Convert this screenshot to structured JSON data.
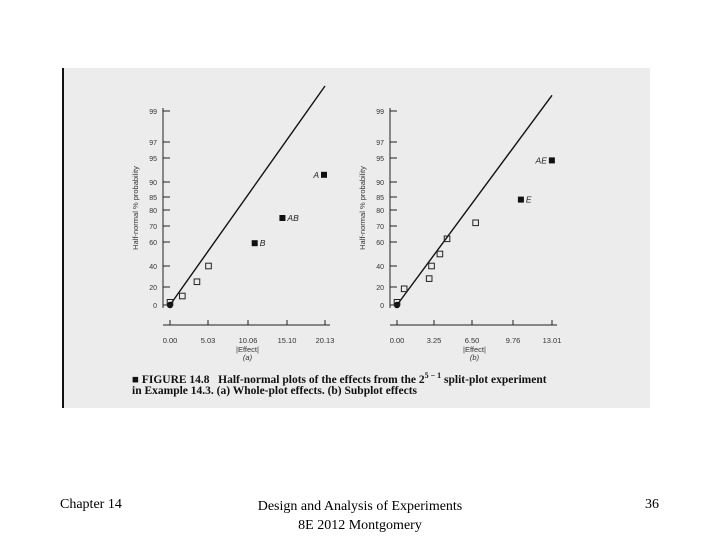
{
  "caption": {
    "label": "■ FIGURE 14.8",
    "line1_rest": "Half-normal plots of the effects from the 2",
    "sup": "5 − 1",
    "line1_end": " split-plot experiment",
    "line2": "in Example 14.3. (a) Whole-plot effects. (b) Subplot effects"
  },
  "footer": {
    "left": "Chapter 14",
    "center_line1": "Design and Analysis of Experiments",
    "center_line2": "8E 2012 Montgomery",
    "page": "36"
  },
  "chart_data": [
    {
      "type": "scatter",
      "panel_label": "(a)",
      "xlabel": "|Effect|",
      "ylabel": "Half-normal % probability",
      "x_ticks": [
        "0.00",
        "5.03",
        "10.06",
        "15.10",
        "20.13"
      ],
      "x_range": [
        0,
        20.13
      ],
      "y_ticks": [
        "0",
        "20",
        "40",
        "60",
        "70",
        "80",
        "85",
        "90",
        "95",
        "97",
        "99"
      ],
      "fit_line": [
        [
          0,
          0
        ],
        [
          20.13,
          99.5
        ]
      ],
      "points": [
        {
          "x": 0.0,
          "y": 0,
          "marker": "filled-circle",
          "label": ""
        },
        {
          "x": 0.0,
          "y": 3,
          "marker": "open-square",
          "label": ""
        },
        {
          "x": 1.6,
          "y": 10,
          "marker": "open-square",
          "label": ""
        },
        {
          "x": 3.5,
          "y": 25,
          "marker": "open-square",
          "label": ""
        },
        {
          "x": 5.0,
          "y": 40,
          "marker": "open-square",
          "label": ""
        },
        {
          "x": 11.0,
          "y": 59,
          "marker": "filled-square",
          "label": "B"
        },
        {
          "x": 14.6,
          "y": 75,
          "marker": "filled-square",
          "label": "AB"
        },
        {
          "x": 20.0,
          "y": 91.5,
          "marker": "filled-square",
          "label": "A"
        }
      ]
    },
    {
      "type": "scatter",
      "panel_label": "(b)",
      "xlabel": "|Effect|",
      "ylabel": "Half-normal % probability",
      "x_ticks": [
        "0.00",
        "3.25",
        "6.50",
        "9.76",
        "13.01"
      ],
      "x_range": [
        0,
        13.01
      ],
      "y_ticks": [
        "0",
        "20",
        "40",
        "60",
        "70",
        "80",
        "85",
        "90",
        "95",
        "97",
        "99"
      ],
      "fit_line": [
        [
          0,
          0
        ],
        [
          13.01,
          98.4
        ]
      ],
      "points": [
        {
          "x": 0.0,
          "y": 0,
          "marker": "filled-circle",
          "label": ""
        },
        {
          "x": 0.0,
          "y": 3,
          "marker": "open-square",
          "label": ""
        },
        {
          "x": 0.6,
          "y": 18,
          "marker": "open-square",
          "label": ""
        },
        {
          "x": 2.7,
          "y": 28,
          "marker": "open-square",
          "label": ""
        },
        {
          "x": 2.9,
          "y": 40,
          "marker": "open-square",
          "label": ""
        },
        {
          "x": 3.6,
          "y": 50,
          "marker": "open-square",
          "label": ""
        },
        {
          "x": 4.2,
          "y": 62,
          "marker": "open-square",
          "label": ""
        },
        {
          "x": 6.6,
          "y": 72,
          "marker": "open-square",
          "label": ""
        },
        {
          "x": 10.4,
          "y": 84,
          "marker": "filled-square",
          "label": "E"
        },
        {
          "x": 13.0,
          "y": 94.5,
          "marker": "filled-square",
          "label": "AE"
        }
      ]
    }
  ]
}
